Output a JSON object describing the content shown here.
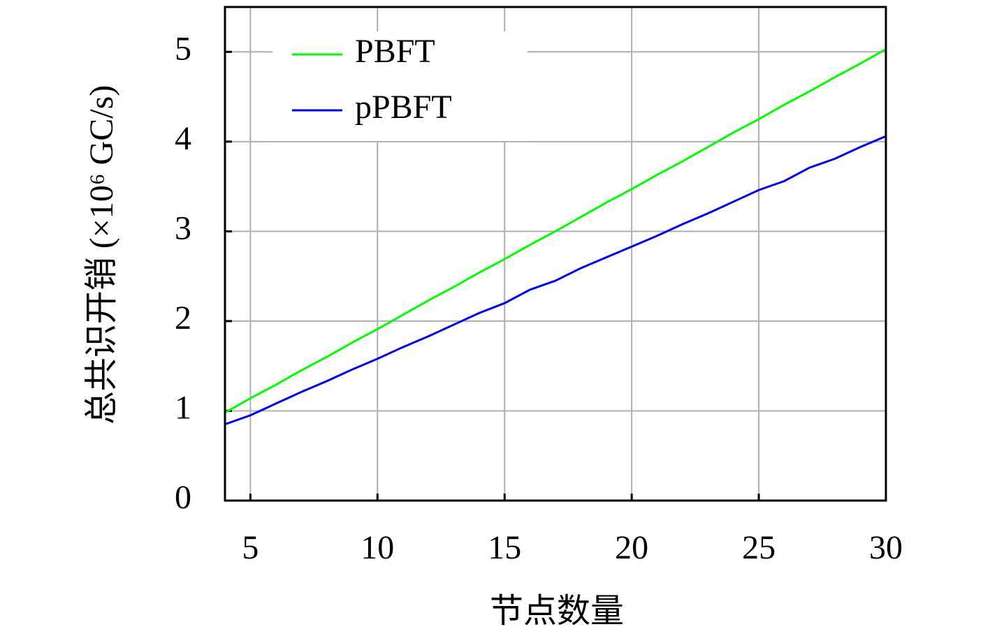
{
  "chart_data": {
    "type": "line",
    "xlabel": "节点数量",
    "ylabel": "总共识开销 (×10⁶ GC/s)",
    "x": [
      4,
      5,
      6,
      7,
      8,
      9,
      10,
      11,
      12,
      13,
      14,
      15,
      16,
      17,
      18,
      19,
      20,
      21,
      22,
      23,
      24,
      25,
      26,
      27,
      28,
      29,
      30
    ],
    "series": [
      {
        "name": "PBFT",
        "color": "#00ff00",
        "values": [
          0.98,
          1.14,
          1.29,
          1.45,
          1.6,
          1.76,
          1.91,
          2.07,
          2.23,
          2.38,
          2.54,
          2.69,
          2.85,
          3.0,
          3.16,
          3.32,
          3.47,
          3.63,
          3.78,
          3.94,
          4.1,
          4.25,
          4.41,
          4.56,
          4.72,
          4.87,
          5.03
        ]
      },
      {
        "name": "pPBFT",
        "color": "#0000ff",
        "values": [
          0.85,
          0.95,
          1.08,
          1.21,
          1.33,
          1.46,
          1.58,
          1.71,
          1.83,
          1.96,
          2.09,
          2.2,
          2.35,
          2.45,
          2.59,
          2.71,
          2.83,
          2.95,
          3.08,
          3.2,
          3.33,
          3.46,
          3.56,
          3.71,
          3.81,
          3.94,
          4.06
        ]
      }
    ],
    "xlim": [
      4,
      30
    ],
    "xticks": [
      5,
      10,
      15,
      20,
      25,
      30
    ],
    "ylim": [
      0,
      5.5
    ],
    "yticks": [
      0,
      1,
      2,
      3,
      4,
      5
    ],
    "grid": true,
    "legend": "upper left"
  }
}
